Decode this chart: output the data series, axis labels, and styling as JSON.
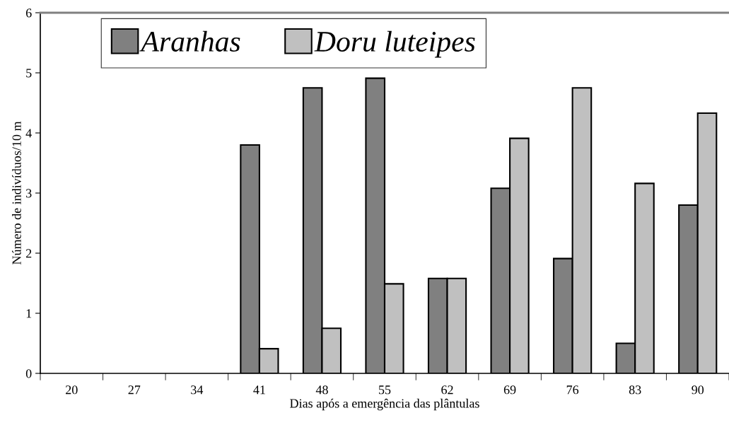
{
  "chart_data": {
    "type": "bar",
    "xlabel": "Dias após a emergência das plântulas",
    "ylabel": "Número de indivíduos/10 m",
    "categories": [
      "20",
      "27",
      "34",
      "41",
      "48",
      "55",
      "62",
      "69",
      "76",
      "83",
      "90"
    ],
    "series": [
      {
        "name": "Aranhas",
        "color": "#808080",
        "values": [
          0,
          0,
          0,
          3.8,
          4.75,
          4.91,
          1.58,
          3.08,
          1.91,
          0.5,
          2.8
        ]
      },
      {
        "name": "Doru luteipes",
        "color": "#c0c0c0",
        "values": [
          0,
          0,
          0,
          0.41,
          0.75,
          1.49,
          1.58,
          3.91,
          4.75,
          3.16,
          4.33
        ]
      }
    ],
    "ylim": [
      0,
      6
    ],
    "yticks": [
      0,
      1,
      2,
      3,
      4,
      5,
      6
    ],
    "grid": false,
    "legend": "top"
  }
}
